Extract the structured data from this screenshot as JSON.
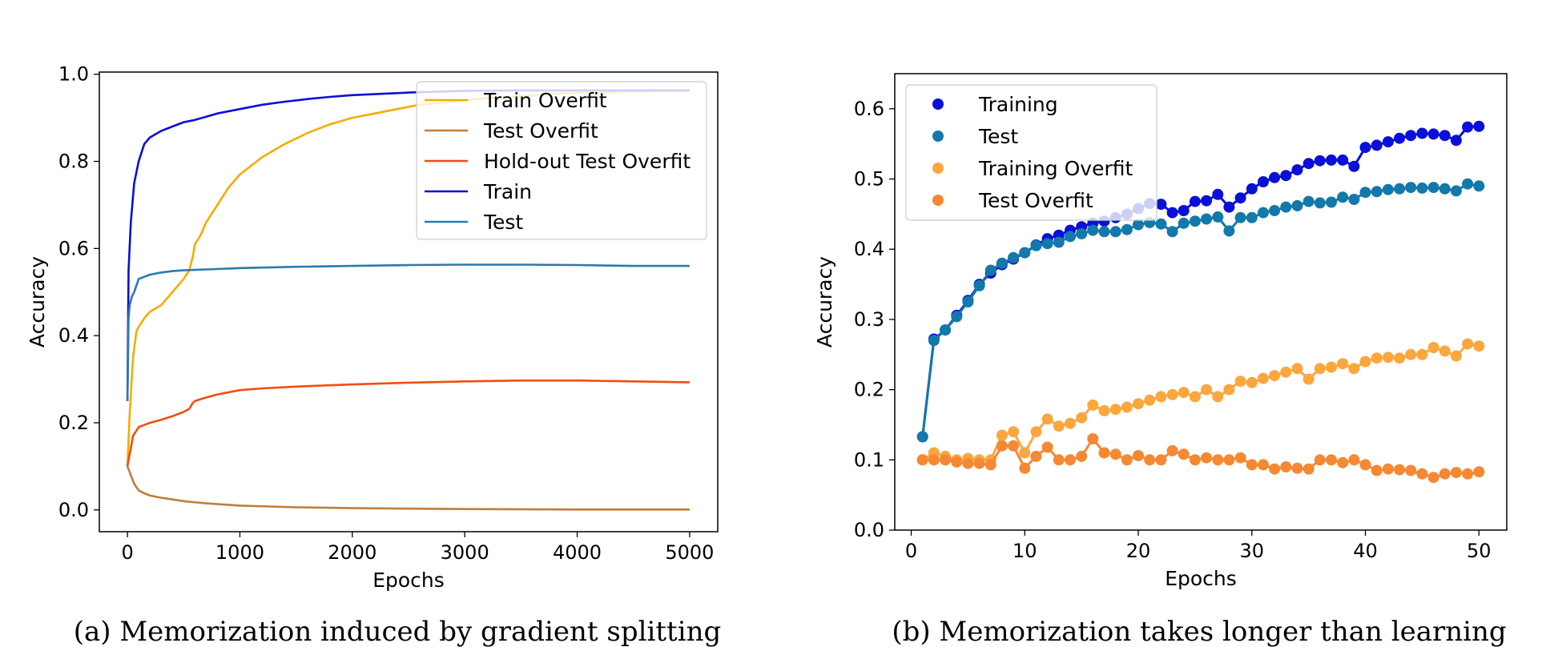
{
  "chart_data": [
    {
      "type": "line",
      "caption": "(a) Memorization induced by gradient splitting",
      "xlabel": "Epochs",
      "ylabel": "Accuracy",
      "xlim": [
        -250,
        5250
      ],
      "ylim": [
        -0.05,
        1.005
      ],
      "xticks": [
        0,
        1000,
        2000,
        3000,
        4000,
        5000
      ],
      "yticks": [
        0.0,
        0.2,
        0.4,
        0.6,
        0.8,
        1.0
      ],
      "xtick_labels": [
        "0",
        "1000",
        "2000",
        "3000",
        "4000",
        "5000"
      ],
      "ytick_labels": [
        "0.0",
        "0.2",
        "0.4",
        "0.6",
        "0.8",
        "1.0"
      ],
      "legend_position": "top-right",
      "series": [
        {
          "name": "Train Overfit",
          "color": "#f5ac00",
          "x": [
            0,
            20,
            50,
            80,
            100,
            150,
            200,
            300,
            400,
            500,
            550,
            580,
            600,
            650,
            700,
            800,
            900,
            1000,
            1200,
            1400,
            1600,
            1800,
            2000,
            2200,
            2400,
            2600,
            2800,
            3000,
            3200,
            3400,
            3600,
            3800,
            4000,
            4200,
            4400,
            4600,
            4800,
            5000
          ],
          "y": [
            0.1,
            0.22,
            0.35,
            0.41,
            0.42,
            0.44,
            0.455,
            0.47,
            0.5,
            0.53,
            0.55,
            0.58,
            0.61,
            0.63,
            0.66,
            0.7,
            0.74,
            0.77,
            0.81,
            0.84,
            0.865,
            0.885,
            0.9,
            0.91,
            0.92,
            0.93,
            0.935,
            0.94,
            0.945,
            0.948,
            0.952,
            0.955,
            0.957,
            0.958,
            0.96,
            0.961,
            0.962,
            0.963
          ]
        },
        {
          "name": "Test Overfit",
          "color": "#c27c39",
          "x": [
            0,
            30,
            60,
            100,
            150,
            200,
            300,
            400,
            500,
            700,
            1000,
            1500,
            2000,
            2500,
            3000,
            4000,
            5000
          ],
          "y": [
            0.1,
            0.08,
            0.06,
            0.045,
            0.038,
            0.033,
            0.028,
            0.024,
            0.02,
            0.015,
            0.01,
            0.006,
            0.004,
            0.003,
            0.002,
            0.001,
            0.001
          ]
        },
        {
          "name": "Hold-out Test Overfit",
          "color": "#f24d0e",
          "x": [
            0,
            50,
            100,
            150,
            200,
            300,
            400,
            500,
            550,
            580,
            600,
            700,
            800,
            1000,
            1200,
            1500,
            2000,
            2500,
            3000,
            3500,
            4000,
            4500,
            5000
          ],
          "y": [
            0.1,
            0.17,
            0.19,
            0.195,
            0.2,
            0.207,
            0.215,
            0.225,
            0.232,
            0.245,
            0.25,
            0.258,
            0.265,
            0.275,
            0.279,
            0.283,
            0.288,
            0.292,
            0.295,
            0.297,
            0.297,
            0.295,
            0.293
          ]
        },
        {
          "name": "Train",
          "color": "#0b0ed6",
          "x": [
            0,
            10,
            30,
            60,
            100,
            150,
            200,
            300,
            400,
            500,
            600,
            800,
            1000,
            1200,
            1400,
            1600,
            1800,
            2000,
            2500,
            3000,
            3500,
            4000,
            4500,
            5000
          ],
          "y": [
            0.25,
            0.55,
            0.66,
            0.75,
            0.8,
            0.84,
            0.855,
            0.87,
            0.88,
            0.89,
            0.895,
            0.91,
            0.92,
            0.93,
            0.937,
            0.943,
            0.948,
            0.952,
            0.958,
            0.962,
            0.963,
            0.963,
            0.963,
            0.963
          ]
        },
        {
          "name": "Test",
          "color": "#2a7ab0",
          "x": [
            0,
            10,
            20,
            40,
            60,
            80,
            100,
            150,
            200,
            300,
            400,
            500,
            700,
            1000,
            1500,
            2000,
            2500,
            3000,
            3500,
            4000,
            4500,
            5000
          ],
          "y": [
            0.25,
            0.44,
            0.47,
            0.49,
            0.5,
            0.515,
            0.53,
            0.535,
            0.54,
            0.545,
            0.548,
            0.55,
            0.552,
            0.555,
            0.558,
            0.56,
            0.562,
            0.563,
            0.563,
            0.562,
            0.56,
            0.56
          ]
        }
      ]
    },
    {
      "type": "line",
      "caption": "(b) Memorization takes longer than learning",
      "xlabel": "Epochs",
      "ylabel": "Accuracy",
      "xlim": [
        -1.45,
        52.45
      ],
      "ylim": [
        0.0,
        0.65
      ],
      "xticks": [
        0,
        10,
        20,
        30,
        40,
        50
      ],
      "yticks": [
        0.0,
        0.1,
        0.2,
        0.3,
        0.4,
        0.5,
        0.6
      ],
      "xtick_labels": [
        "0",
        "10",
        "20",
        "30",
        "40",
        "50"
      ],
      "ytick_labels": [
        "0.0",
        "0.1",
        "0.2",
        "0.3",
        "0.4",
        "0.5",
        "0.6"
      ],
      "legend_position": "top-left",
      "x": [
        1,
        2,
        3,
        4,
        5,
        6,
        7,
        8,
        9,
        10,
        11,
        12,
        13,
        14,
        15,
        16,
        17,
        18,
        19,
        20,
        21,
        22,
        23,
        24,
        25,
        26,
        27,
        28,
        29,
        30,
        31,
        32,
        33,
        34,
        35,
        36,
        37,
        38,
        39,
        40,
        41,
        42,
        43,
        44,
        45,
        46,
        47,
        48,
        49,
        50
      ],
      "series": [
        {
          "name": "Training",
          "color": "#0a10d8",
          "y": [
            0.133,
            0.272,
            0.285,
            0.306,
            0.327,
            0.35,
            0.366,
            0.378,
            0.386,
            0.395,
            0.406,
            0.415,
            0.42,
            0.427,
            0.432,
            0.437,
            0.44,
            0.445,
            0.45,
            0.458,
            0.465,
            0.464,
            0.452,
            0.455,
            0.468,
            0.469,
            0.478,
            0.46,
            0.473,
            0.486,
            0.496,
            0.502,
            0.505,
            0.513,
            0.522,
            0.526,
            0.527,
            0.527,
            0.518,
            0.545,
            0.548,
            0.553,
            0.558,
            0.562,
            0.565,
            0.564,
            0.562,
            0.555,
            0.574,
            0.575
          ]
        },
        {
          "name": "Test",
          "color": "#1378ab",
          "y": [
            0.133,
            0.27,
            0.285,
            0.304,
            0.325,
            0.348,
            0.37,
            0.38,
            0.388,
            0.395,
            0.405,
            0.408,
            0.41,
            0.418,
            0.422,
            0.427,
            0.425,
            0.425,
            0.428,
            0.435,
            0.438,
            0.436,
            0.425,
            0.437,
            0.44,
            0.443,
            0.446,
            0.426,
            0.445,
            0.445,
            0.452,
            0.455,
            0.46,
            0.462,
            0.468,
            0.466,
            0.467,
            0.474,
            0.471,
            0.481,
            0.482,
            0.485,
            0.486,
            0.488,
            0.487,
            0.488,
            0.486,
            0.483,
            0.493,
            0.49
          ]
        },
        {
          "name": "Training Overfit",
          "color": "#fba73e",
          "y": [
            0.1,
            0.11,
            0.105,
            0.1,
            0.102,
            0.1,
            0.1,
            0.135,
            0.14,
            0.11,
            0.14,
            0.158,
            0.148,
            0.152,
            0.16,
            0.178,
            0.17,
            0.172,
            0.175,
            0.18,
            0.185,
            0.19,
            0.193,
            0.196,
            0.19,
            0.2,
            0.19,
            0.2,
            0.212,
            0.21,
            0.216,
            0.22,
            0.225,
            0.23,
            0.215,
            0.23,
            0.232,
            0.237,
            0.23,
            0.24,
            0.245,
            0.246,
            0.245,
            0.25,
            0.25,
            0.26,
            0.255,
            0.248,
            0.265,
            0.262
          ]
        },
        {
          "name": "Test Overfit",
          "color": "#f58833",
          "y": [
            0.1,
            0.1,
            0.1,
            0.097,
            0.095,
            0.095,
            0.093,
            0.12,
            0.12,
            0.088,
            0.105,
            0.118,
            0.1,
            0.1,
            0.105,
            0.13,
            0.11,
            0.108,
            0.1,
            0.106,
            0.1,
            0.1,
            0.113,
            0.108,
            0.1,
            0.103,
            0.1,
            0.1,
            0.103,
            0.093,
            0.093,
            0.087,
            0.09,
            0.088,
            0.087,
            0.1,
            0.1,
            0.096,
            0.1,
            0.093,
            0.085,
            0.087,
            0.086,
            0.085,
            0.08,
            0.075,
            0.08,
            0.082,
            0.08,
            0.083
          ]
        }
      ]
    }
  ]
}
